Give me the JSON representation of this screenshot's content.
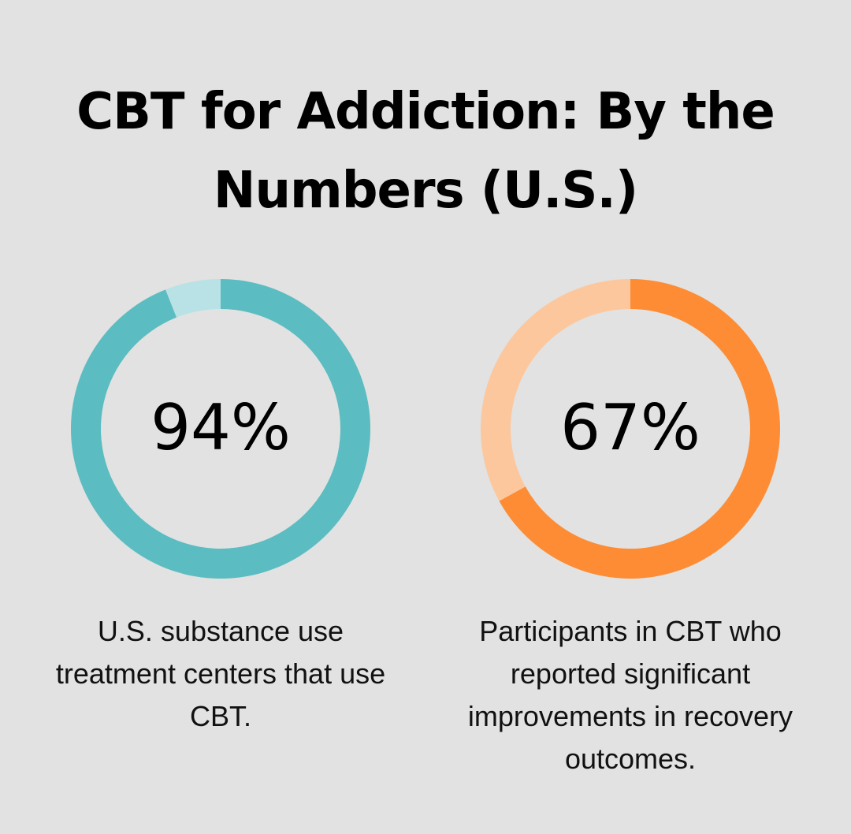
{
  "title": "CBT for Addiction: By the Numbers (U.S.)",
  "chart_data": [
    {
      "type": "pie",
      "title": "",
      "value_label": "94%",
      "values": [
        94,
        6
      ],
      "colors": [
        "#5bbcc1",
        "#b8e2e5"
      ],
      "caption": "U.S. substance use treatment centers that use CBT."
    },
    {
      "type": "pie",
      "title": "",
      "value_label": "67%",
      "values": [
        67,
        33
      ],
      "colors": [
        "#fd8c35",
        "#fdc79d"
      ],
      "caption": "Participants in CBT who reported significant improvements in recovery outcomes."
    }
  ]
}
